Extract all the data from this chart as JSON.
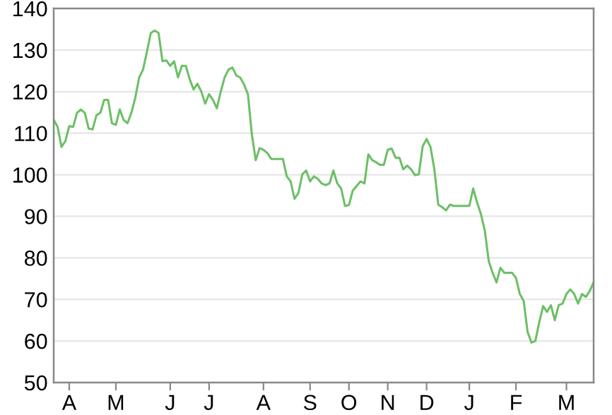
{
  "chart_data": {
    "type": "line",
    "color": "#6dbf67",
    "grid": "y",
    "marker": "none",
    "line_style": "solid",
    "categories": [
      null,
      null,
      null,
      null,
      "A",
      null,
      null,
      null,
      null,
      null,
      null,
      null,
      null,
      null,
      null,
      null,
      "M",
      null,
      null,
      null,
      null,
      null,
      null,
      null,
      null,
      null,
      null,
      null,
      null,
      null,
      "J",
      null,
      null,
      null,
      null,
      null,
      null,
      null,
      null,
      null,
      "J",
      null,
      null,
      null,
      null,
      null,
      null,
      null,
      null,
      null,
      null,
      null,
      null,
      null,
      "A",
      null,
      null,
      null,
      null,
      null,
      null,
      null,
      null,
      null,
      null,
      null,
      "S",
      null,
      null,
      null,
      null,
      null,
      null,
      null,
      null,
      null,
      "O",
      null,
      null,
      null,
      null,
      null,
      null,
      null,
      null,
      null,
      "N",
      null,
      null,
      null,
      null,
      null,
      null,
      null,
      null,
      null,
      "D",
      null,
      null,
      null,
      null,
      null,
      null,
      null,
      null,
      null,
      null,
      "J",
      null,
      null,
      null,
      null,
      null,
      null,
      null,
      null,
      null,
      null,
      null,
      "F",
      null,
      null,
      null,
      null,
      null,
      null,
      null,
      null,
      null,
      null,
      null,
      null,
      "M",
      null,
      null,
      null,
      null,
      null,
      null,
      null
    ],
    "values": [
      113.2,
      111.5,
      106.7,
      108.1,
      111.7,
      111.5,
      114.9,
      115.7,
      114.9,
      111.1,
      110.9,
      114.3,
      114.9,
      118.0,
      118.0,
      112.4,
      112.0,
      115.7,
      113.2,
      112.4,
      114.9,
      118.5,
      123.4,
      125.3,
      129.6,
      134.1,
      134.7,
      134.1,
      127.3,
      127.5,
      126.2,
      127.3,
      123.4,
      126.2,
      126.2,
      123.0,
      120.5,
      121.9,
      120.0,
      117.1,
      119.4,
      118.0,
      116.0,
      120.0,
      123.4,
      125.3,
      125.8,
      123.9,
      123.4,
      121.7,
      119.4,
      109.8,
      103.5,
      106.4,
      106.0,
      105.2,
      103.8,
      103.8,
      103.8,
      103.8,
      99.6,
      98.4,
      94.2,
      95.6,
      100.1,
      101.0,
      98.4,
      99.6,
      99.0,
      97.9,
      97.5,
      97.9,
      101.0,
      97.9,
      96.7,
      92.5,
      92.7,
      96.2,
      97.3,
      98.4,
      97.9,
      104.9,
      103.5,
      103.0,
      102.4,
      102.4,
      106.0,
      106.3,
      104.1,
      104.1,
      101.3,
      102.2,
      101.3,
      99.9,
      100.1,
      106.9,
      108.6,
      106.7,
      101.3,
      92.8,
      92.2,
      91.4,
      92.8,
      92.5,
      92.5,
      92.5,
      92.5,
      92.5,
      96.7,
      93.3,
      90.5,
      86.5,
      79.2,
      76.4,
      74.1,
      77.6,
      76.4,
      76.4,
      76.4,
      75.2,
      71.3,
      69.6,
      62.2,
      59.6,
      60.0,
      64.5,
      68.4,
      67.0,
      68.6,
      65.0,
      68.6,
      69.0,
      71.3,
      72.4,
      71.3,
      69.0,
      71.3,
      70.6,
      72.0,
      74.1
    ],
    "ylim": [
      50,
      140
    ],
    "yticks": [
      50,
      60,
      70,
      80,
      90,
      100,
      110,
      120,
      130,
      140
    ]
  }
}
